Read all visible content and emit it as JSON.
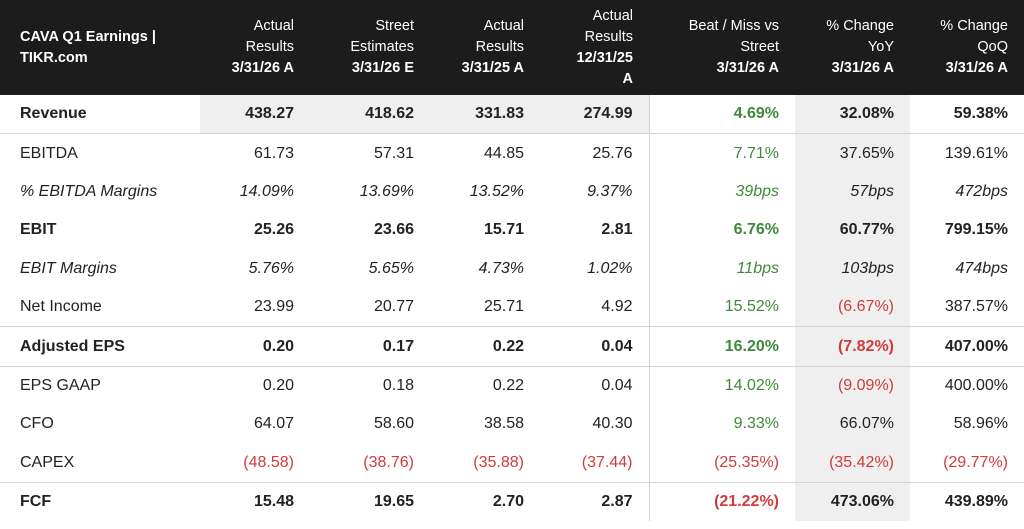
{
  "header": {
    "title_line1": "CAVA Q1 Earnings |",
    "title_line2": "TIKR.com",
    "columns": [
      {
        "l1": "Actual",
        "l2": "Results",
        "l3": "3/31/26 A"
      },
      {
        "l1": "Street",
        "l2": "Estimates",
        "l3": "3/31/26 E"
      },
      {
        "l1": "Actual",
        "l2": "Results",
        "l3": "3/31/25 A"
      },
      {
        "l1": "Actual",
        "l2": "Results",
        "l3": "12/31/25",
        "l4": "A"
      },
      {
        "l1": "Beat / Miss vs",
        "l2": "Street",
        "l3": "3/31/26 A"
      },
      {
        "l1": "% Change",
        "l2": "YoY",
        "l3": "3/31/26 A"
      },
      {
        "l1": "% Change",
        "l2": "QoQ",
        "l3": "3/31/26 A"
      }
    ]
  },
  "rows": [
    {
      "label": "Revenue",
      "values": [
        "438.27",
        "418.62",
        "331.83",
        "274.99",
        "4.69%",
        "32.08%",
        "59.38%"
      ]
    },
    {
      "label": "EBITDA",
      "values": [
        "61.73",
        "57.31",
        "44.85",
        "25.76",
        "7.71%",
        "37.65%",
        "139.61%"
      ]
    },
    {
      "label": "% EBITDA Margins",
      "values": [
        "14.09%",
        "13.69%",
        "13.52%",
        "9.37%",
        "39bps",
        "57bps",
        "472bps"
      ]
    },
    {
      "label": "EBIT",
      "values": [
        "25.26",
        "23.66",
        "15.71",
        "2.81",
        "6.76%",
        "60.77%",
        "799.15%"
      ]
    },
    {
      "label": "EBIT Margins",
      "values": [
        "5.76%",
        "5.65%",
        "4.73%",
        "1.02%",
        "11bps",
        "103bps",
        "474bps"
      ]
    },
    {
      "label": "Net Income",
      "values": [
        "23.99",
        "20.77",
        "25.71",
        "4.92",
        "15.52%",
        "(6.67%)",
        "387.57%"
      ]
    },
    {
      "label": "Adjusted EPS",
      "values": [
        "0.20",
        "0.17",
        "0.22",
        "0.04",
        "16.20%",
        "(7.82%)",
        "407.00%"
      ]
    },
    {
      "label": "EPS GAAP",
      "values": [
        "0.20",
        "0.18",
        "0.22",
        "0.04",
        "14.02%",
        "(9.09%)",
        "400.00%"
      ]
    },
    {
      "label": "CFO",
      "values": [
        "64.07",
        "58.60",
        "38.58",
        "40.30",
        "9.33%",
        "66.07%",
        "58.96%"
      ]
    },
    {
      "label": "CAPEX",
      "values": [
        "(48.58)",
        "(38.76)",
        "(35.88)",
        "(37.44)",
        "(25.35%)",
        "(35.42%)",
        "(29.77%)"
      ]
    },
    {
      "label": "FCF",
      "values": [
        "15.48",
        "19.65",
        "2.70",
        "2.87",
        "(21.22%)",
        "473.06%",
        "439.89%"
      ]
    }
  ],
  "colors": {
    "positive": "#3f8a3a",
    "negative": "#d13b3b",
    "header_bg": "#1c1c1c",
    "shade": "#efefef"
  }
}
